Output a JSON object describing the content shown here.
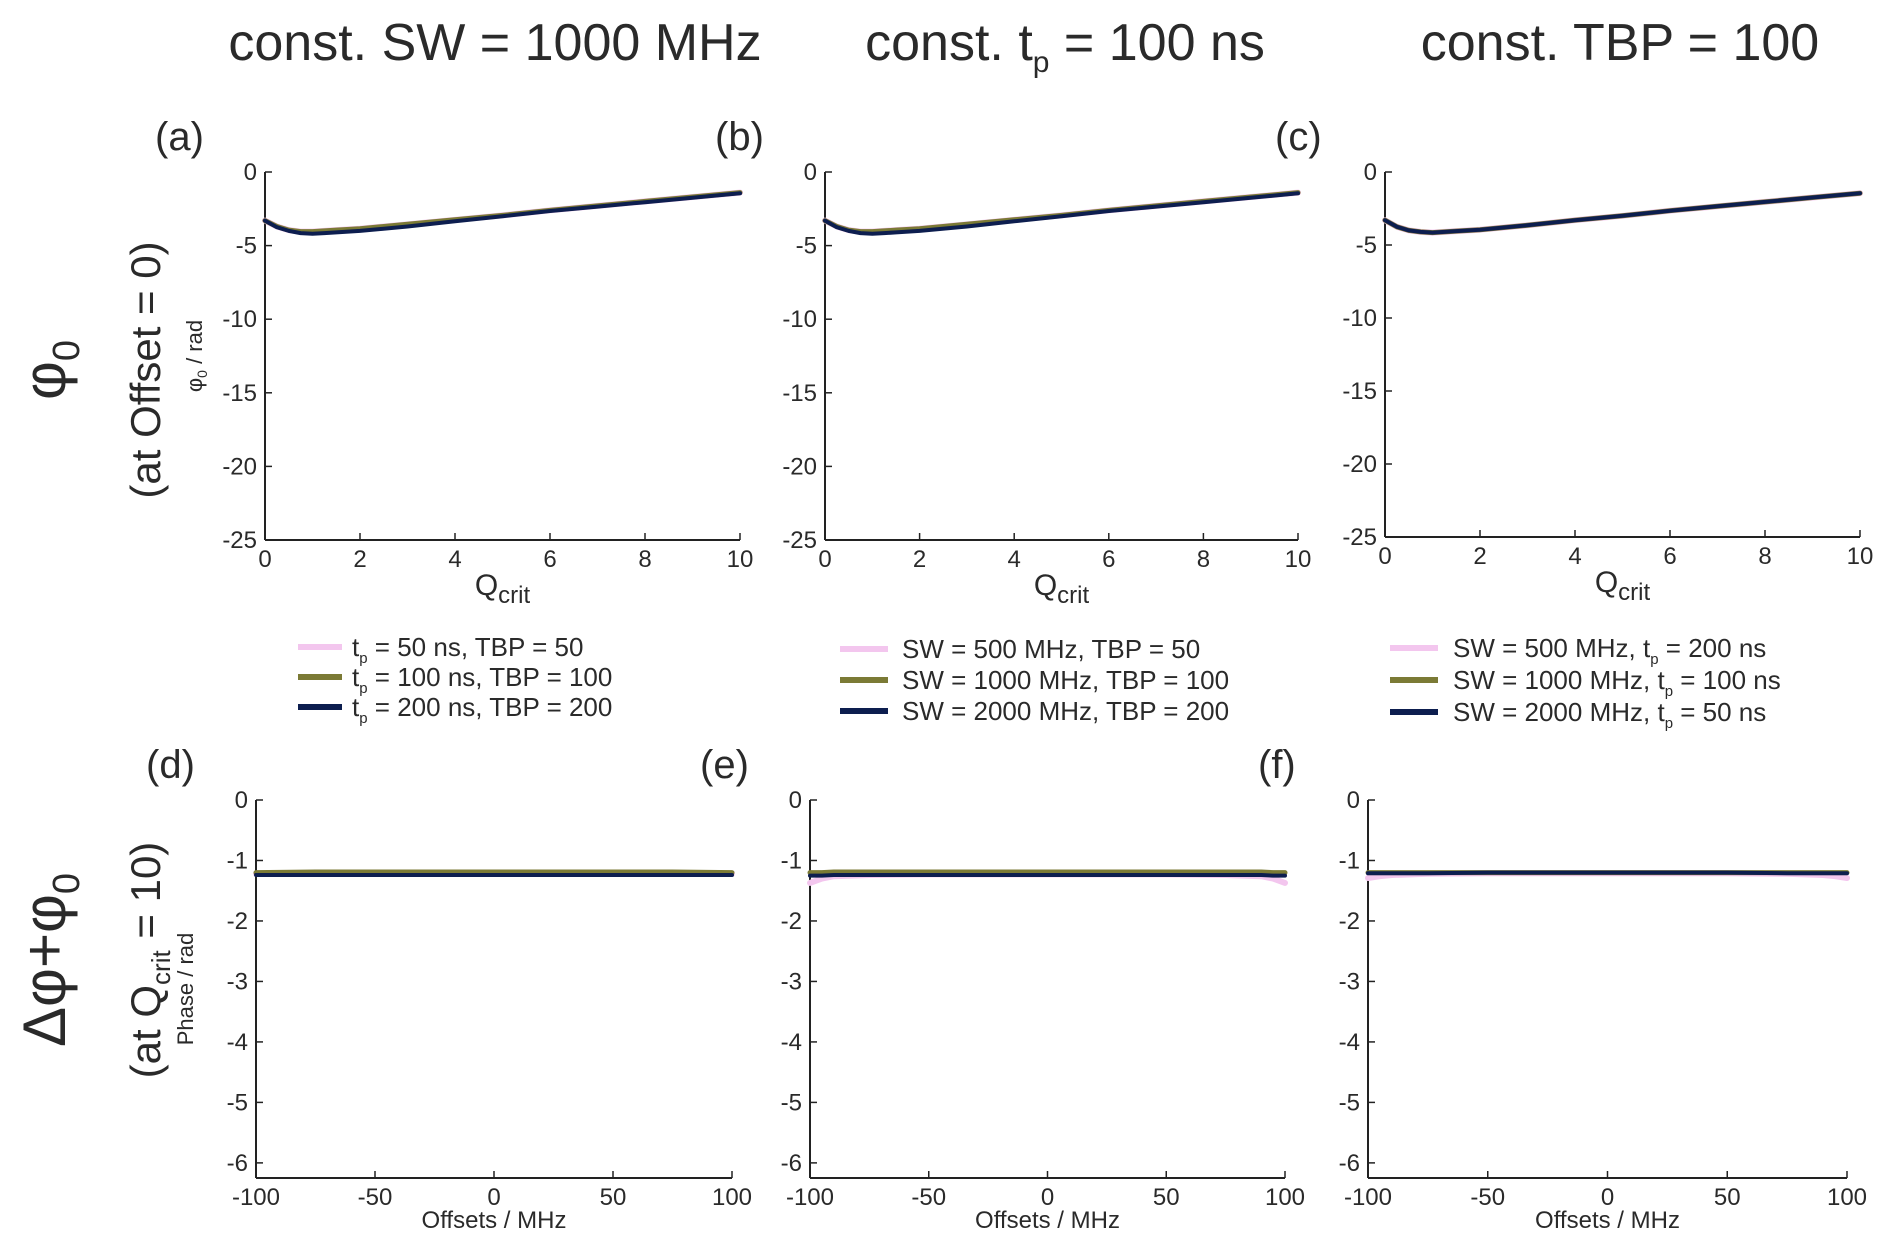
{
  "column_titles": [
    {
      "pre": "const. SW = 1000 MHz",
      "sub": "",
      "post": ""
    },
    {
      "pre": "const. t",
      "sub": "p",
      "post": " = 100 ns"
    },
    {
      "pre": "const. TBP = 100",
      "sub": "",
      "post": ""
    }
  ],
  "row_titles": [
    {
      "main": "φ",
      "main_sub": "0",
      "sub_pre": "(at Offset = 0)",
      "sub_sub": "",
      "sub_post": ""
    },
    {
      "main": "Δφ+φ",
      "main_sub": "0",
      "sub_pre": "(at Q",
      "sub_sub": "crit",
      "sub_post": " = 10)"
    }
  ],
  "colors": {
    "pink": "#f3c6ee",
    "olive": "#7b7a35",
    "navy": "#0d1e4f",
    "axis": "#222222"
  },
  "legends": [
    [
      {
        "parts": [
          "t",
          "p",
          " = 50 ns,   TBP = 50"
        ],
        "color": "#f3c6ee"
      },
      {
        "parts": [
          "t",
          "p",
          " = 100 ns, TBP = 100"
        ],
        "color": "#7b7a35"
      },
      {
        "parts": [
          "t",
          "p",
          " = 200 ns, TBP = 200"
        ],
        "color": "#0d1e4f"
      }
    ],
    [
      {
        "parts": [
          "SW = 500 MHz,   TBP = 50",
          "",
          ""
        ],
        "color": "#f3c6ee"
      },
      {
        "parts": [
          "SW = 1000 MHz, TBP = 100",
          "",
          ""
        ],
        "color": "#7b7a35"
      },
      {
        "parts": [
          "SW = 2000 MHz, TBP = 200",
          "",
          ""
        ],
        "color": "#0d1e4f"
      }
    ],
    [
      {
        "parts": [
          "SW = 500 MHz,    t",
          "p",
          " = 200 ns"
        ],
        "color": "#f3c6ee"
      },
      {
        "parts": [
          "SW = 1000 MHz,  t",
          "p",
          " = 100 ns"
        ],
        "color": "#7b7a35"
      },
      {
        "parts": [
          "SW = 2000 MHz,  t",
          "p",
          " = 50 ns"
        ],
        "color": "#0d1e4f"
      }
    ]
  ],
  "chart_data": [
    {
      "type": "line",
      "panel_label": "(a)",
      "xlabel_main": "Q",
      "xlabel_sub": "crit",
      "ylabel_main": "φ",
      "ylabel_sub": "0",
      "ylabel_post": " / rad",
      "xlim": [
        0,
        10
      ],
      "ylim": [
        -25,
        0
      ],
      "xticks": [
        0,
        2,
        4,
        6,
        8,
        10
      ],
      "yticks": [
        0,
        -5,
        -10,
        -15,
        -20,
        -25
      ],
      "x": [
        0,
        0.25,
        0.5,
        0.75,
        1,
        1.25,
        1.5,
        2,
        3,
        4,
        5,
        6,
        7,
        8,
        9,
        10
      ],
      "series": [
        {
          "color": "#f3c6ee",
          "values": [
            -3.3,
            -3.7,
            -3.95,
            -4.05,
            -4.05,
            -4.0,
            -3.95,
            -3.85,
            -3.55,
            -3.25,
            -2.95,
            -2.6,
            -2.3,
            -2.0,
            -1.7,
            -1.4
          ]
        },
        {
          "color": "#7b7a35",
          "values": [
            -3.3,
            -3.7,
            -3.95,
            -4.05,
            -4.05,
            -4.0,
            -3.95,
            -3.85,
            -3.55,
            -3.25,
            -2.95,
            -2.6,
            -2.3,
            -2.0,
            -1.7,
            -1.4
          ]
        },
        {
          "color": "#0d1e4f",
          "values": [
            -3.3,
            -3.75,
            -4.0,
            -4.15,
            -4.2,
            -4.15,
            -4.1,
            -4.0,
            -3.7,
            -3.35,
            -3.0,
            -2.65,
            -2.35,
            -2.05,
            -1.75,
            -1.45
          ]
        }
      ]
    },
    {
      "type": "line",
      "panel_label": "(b)",
      "xlabel_main": "Q",
      "xlabel_sub": "crit",
      "ylabel_main": "",
      "ylabel_sub": "",
      "ylabel_post": "",
      "xlim": [
        0,
        10
      ],
      "ylim": [
        -25,
        0
      ],
      "xticks": [
        0,
        2,
        4,
        6,
        8,
        10
      ],
      "yticks": [
        0,
        -5,
        -10,
        -15,
        -20,
        -25
      ],
      "x": [
        0,
        0.25,
        0.5,
        0.75,
        1,
        1.25,
        1.5,
        2,
        3,
        4,
        5,
        6,
        7,
        8,
        9,
        10
      ],
      "series": [
        {
          "color": "#f3c6ee",
          "values": [
            -3.3,
            -3.7,
            -3.95,
            -4.05,
            -4.05,
            -4.0,
            -3.95,
            -3.85,
            -3.55,
            -3.25,
            -2.95,
            -2.6,
            -2.3,
            -2.0,
            -1.7,
            -1.4
          ]
        },
        {
          "color": "#7b7a35",
          "values": [
            -3.3,
            -3.7,
            -3.95,
            -4.05,
            -4.05,
            -4.0,
            -3.95,
            -3.85,
            -3.55,
            -3.25,
            -2.95,
            -2.6,
            -2.3,
            -2.0,
            -1.7,
            -1.4
          ]
        },
        {
          "color": "#0d1e4f",
          "values": [
            -3.3,
            -3.75,
            -4.0,
            -4.15,
            -4.2,
            -4.15,
            -4.1,
            -4.0,
            -3.7,
            -3.35,
            -3.0,
            -2.65,
            -2.35,
            -2.05,
            -1.75,
            -1.45
          ]
        }
      ]
    },
    {
      "type": "line",
      "panel_label": "(c)",
      "xlabel_main": "Q",
      "xlabel_sub": "crit",
      "ylabel_main": "",
      "ylabel_sub": "",
      "ylabel_post": "",
      "xlim": [
        0,
        10
      ],
      "ylim": [
        -25,
        0
      ],
      "xticks": [
        0,
        2,
        4,
        6,
        8,
        10
      ],
      "yticks": [
        0,
        -5,
        -10,
        -15,
        -20,
        -25
      ],
      "x": [
        0,
        0.25,
        0.5,
        0.75,
        1,
        1.25,
        1.5,
        2,
        3,
        4,
        5,
        6,
        7,
        8,
        9,
        10
      ],
      "series": [
        {
          "color": "#f3c6ee",
          "values": [
            -3.3,
            -3.75,
            -4.0,
            -4.1,
            -4.15,
            -4.1,
            -4.05,
            -3.95,
            -3.65,
            -3.3,
            -3.0,
            -2.65,
            -2.35,
            -2.05,
            -1.75,
            -1.45
          ]
        },
        {
          "color": "#7b7a35",
          "values": [
            -3.3,
            -3.75,
            -4.0,
            -4.1,
            -4.15,
            -4.1,
            -4.05,
            -3.95,
            -3.65,
            -3.3,
            -3.0,
            -2.65,
            -2.35,
            -2.05,
            -1.75,
            -1.45
          ]
        },
        {
          "color": "#0d1e4f",
          "values": [
            -3.3,
            -3.75,
            -4.0,
            -4.1,
            -4.15,
            -4.1,
            -4.05,
            -3.95,
            -3.65,
            -3.3,
            -3.0,
            -2.65,
            -2.35,
            -2.05,
            -1.75,
            -1.45
          ]
        }
      ]
    },
    {
      "type": "line",
      "panel_label": "(d)",
      "xlabel_main": "Offsets / MHz",
      "xlabel_sub": "",
      "ylabel_main": "Phase / rad",
      "ylabel_sub": "",
      "ylabel_post": "",
      "xlim": [
        -100,
        100
      ],
      "ylim": [
        -6.25,
        0
      ],
      "xticks": [
        -100,
        -50,
        0,
        50,
        100
      ],
      "yticks": [
        0,
        -1,
        -2,
        -3,
        -4,
        -5,
        -6
      ],
      "x": [
        -100,
        -75,
        -50,
        -25,
        0,
        25,
        50,
        75,
        100
      ],
      "series": [
        {
          "color": "#f3c6ee",
          "values": [
            -1.22,
            -1.22,
            -1.22,
            -1.22,
            -1.22,
            -1.22,
            -1.22,
            -1.22,
            -1.22
          ]
        },
        {
          "color": "#7b7a35",
          "values": [
            -1.2,
            -1.19,
            -1.19,
            -1.19,
            -1.19,
            -1.19,
            -1.19,
            -1.19,
            -1.2
          ]
        },
        {
          "color": "#0d1e4f",
          "values": [
            -1.24,
            -1.24,
            -1.24,
            -1.24,
            -1.24,
            -1.24,
            -1.24,
            -1.24,
            -1.24
          ]
        }
      ]
    },
    {
      "type": "line",
      "panel_label": "(e)",
      "xlabel_main": "Offsets / MHz",
      "xlabel_sub": "",
      "ylabel_main": "",
      "ylabel_sub": "",
      "ylabel_post": "",
      "xlim": [
        -100,
        100
      ],
      "ylim": [
        -6.25,
        0
      ],
      "xticks": [
        -100,
        -50,
        0,
        50,
        100
      ],
      "yticks": [
        0,
        -1,
        -2,
        -3,
        -4,
        -5,
        -6
      ],
      "x": [
        -100,
        -95,
        -90,
        -75,
        -50,
        -25,
        0,
        25,
        50,
        75,
        90,
        95,
        100
      ],
      "series": [
        {
          "color": "#f3c6ee",
          "values": [
            -1.37,
            -1.3,
            -1.26,
            -1.24,
            -1.23,
            -1.23,
            -1.23,
            -1.23,
            -1.23,
            -1.24,
            -1.26,
            -1.3,
            -1.37
          ]
        },
        {
          "color": "#7b7a35",
          "values": [
            -1.2,
            -1.2,
            -1.19,
            -1.19,
            -1.19,
            -1.19,
            -1.19,
            -1.19,
            -1.19,
            -1.19,
            -1.19,
            -1.2,
            -1.2
          ]
        },
        {
          "color": "#0d1e4f",
          "values": [
            -1.25,
            -1.25,
            -1.24,
            -1.24,
            -1.24,
            -1.24,
            -1.24,
            -1.24,
            -1.24,
            -1.24,
            -1.24,
            -1.25,
            -1.25
          ]
        }
      ]
    },
    {
      "type": "line",
      "panel_label": "(f)",
      "xlabel_main": "Offsets / MHz",
      "xlabel_sub": "",
      "ylabel_main": "",
      "ylabel_sub": "",
      "ylabel_post": "",
      "xlim": [
        -100,
        100
      ],
      "ylim": [
        -6.25,
        0
      ],
      "xticks": [
        -100,
        -50,
        0,
        50,
        100
      ],
      "yticks": [
        0,
        -1,
        -2,
        -3,
        -4,
        -5,
        -6
      ],
      "x": [
        -100,
        -95,
        -90,
        -75,
        -50,
        -25,
        0,
        25,
        50,
        75,
        90,
        95,
        100
      ],
      "series": [
        {
          "color": "#f3c6ee",
          "values": [
            -1.29,
            -1.26,
            -1.24,
            -1.22,
            -1.21,
            -1.21,
            -1.21,
            -1.21,
            -1.21,
            -1.22,
            -1.24,
            -1.26,
            -1.29
          ]
        },
        {
          "color": "#7b7a35",
          "values": [
            -1.2,
            -1.2,
            -1.2,
            -1.2,
            -1.2,
            -1.2,
            -1.2,
            -1.2,
            -1.2,
            -1.2,
            -1.2,
            -1.2,
            -1.2
          ]
        },
        {
          "color": "#0d1e4f",
          "values": [
            -1.21,
            -1.21,
            -1.21,
            -1.21,
            -1.2,
            -1.2,
            -1.2,
            -1.2,
            -1.2,
            -1.21,
            -1.21,
            -1.21,
            -1.21
          ]
        }
      ]
    }
  ]
}
